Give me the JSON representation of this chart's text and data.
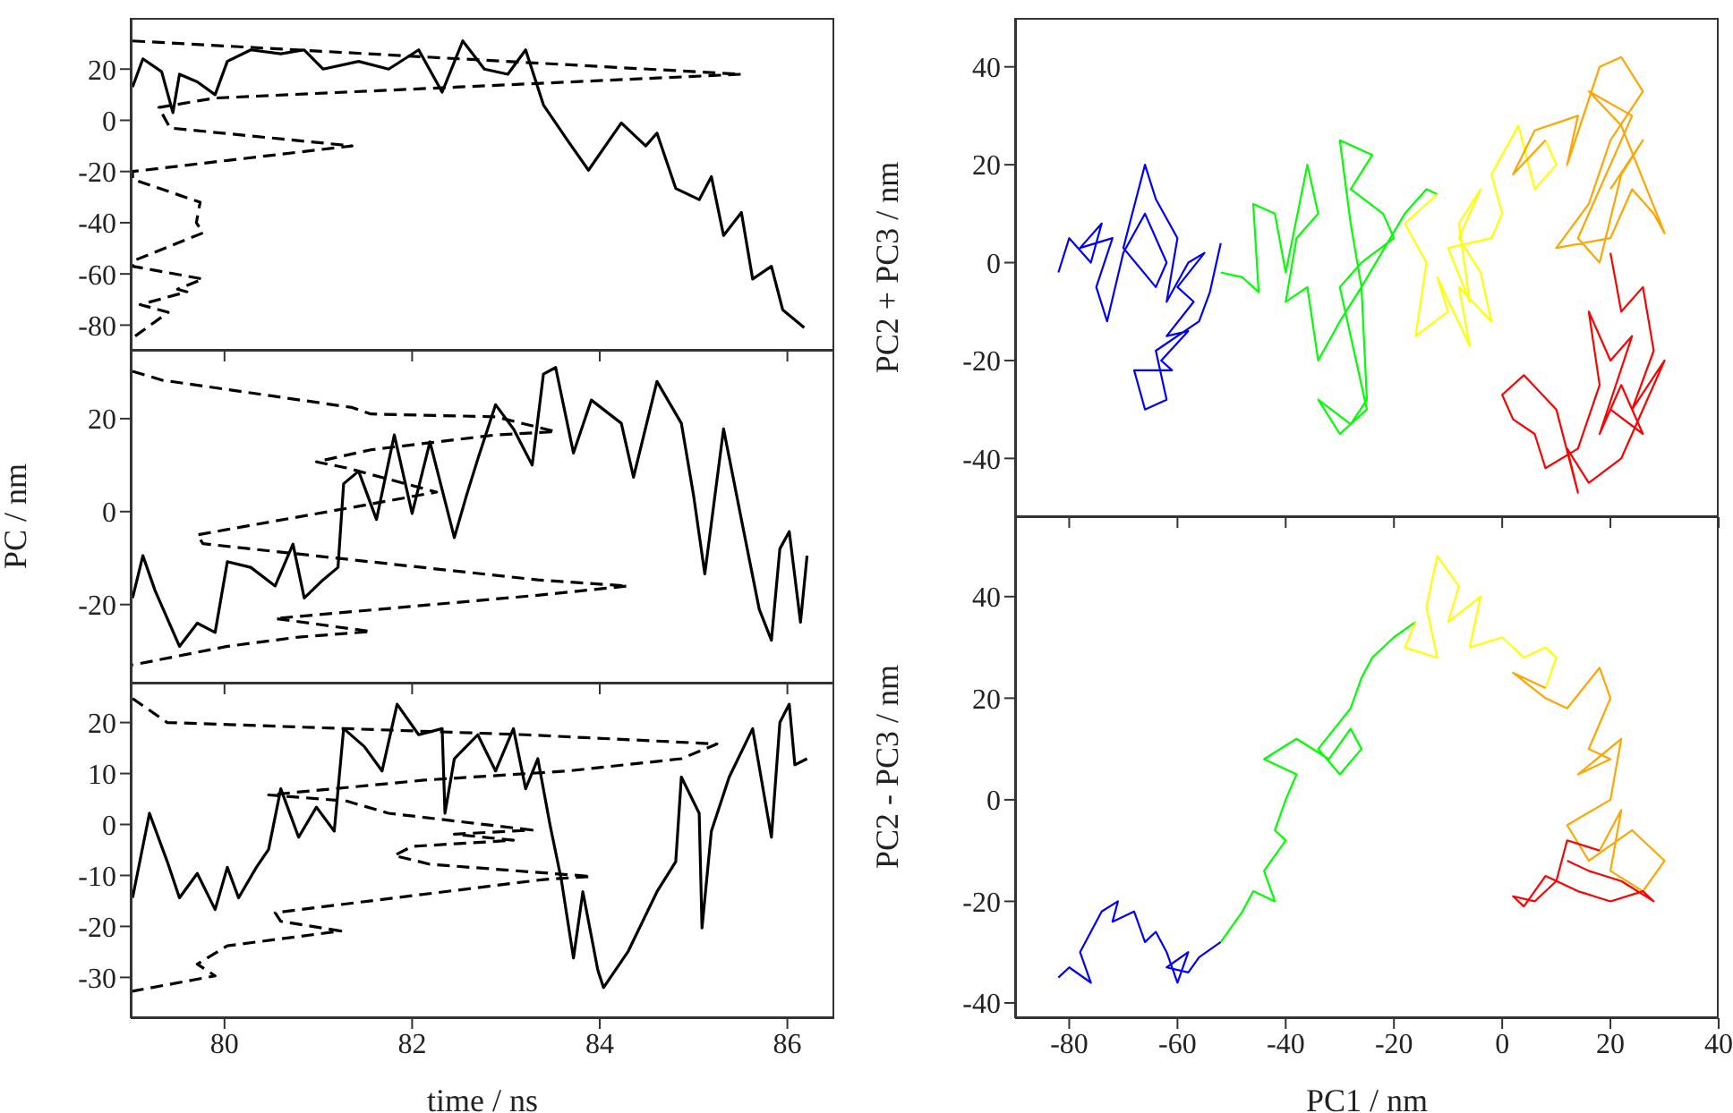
{
  "chart_data": [
    {
      "type": "line",
      "xlim": [
        79,
        86.5
      ],
      "ylim": [
        -90,
        40
      ],
      "xticks": [
        80,
        82,
        84,
        86
      ],
      "yticks": [
        -80,
        -60,
        -40,
        -20,
        0,
        20
      ],
      "tick_labels": "y",
      "series": [
        {
          "type": "line",
          "color": "#000000",
          "x": [
            79.02,
            79.13,
            79.33,
            79.45,
            79.52,
            79.71,
            79.9,
            80.03,
            80.28,
            80.6,
            80.85,
            81.05,
            81.43,
            81.75,
            82.07,
            82.32,
            82.54,
            82.77,
            83.02,
            83.21,
            83.4,
            83.66,
            83.88,
            84.23,
            84.49,
            84.61,
            84.81,
            85.06,
            85.19,
            85.32,
            85.51,
            85.63,
            85.83,
            85.95,
            86.18
          ],
          "values": [
            13,
            24,
            19,
            3,
            18,
            15,
            10,
            23,
            27.5,
            26,
            27.5,
            20,
            23,
            20,
            27.5,
            11,
            31,
            20,
            18,
            27.5,
            6,
            -8,
            -19.5,
            -1,
            -10,
            -5,
            -26.6,
            -31,
            -22,
            -45,
            -36,
            -62,
            -57,
            -74,
            -81
          ]
        },
        {
          "type": "line",
          "line_style": "dashed",
          "color": "#000000",
          "x": [
            79.02,
            85.51,
            79.9,
            79.3,
            79.42,
            81.36,
            79.02,
            79.02,
            79.74,
            79.7,
            79.77,
            79.02,
            79.02,
            79.77,
            79.5,
            79.6,
            79.1,
            79.4,
            79.02
          ],
          "values": [
            31,
            18,
            8.7,
            5,
            -3,
            -10,
            -20,
            -23,
            -32,
            -40,
            -44,
            -55,
            -57,
            -62,
            -66,
            -67,
            -72,
            -75,
            -85
          ]
        }
      ]
    },
    {
      "type": "line",
      "xlim": [
        79,
        86.5
      ],
      "ylim": [
        -37,
        35
      ],
      "xticks": [
        80,
        82,
        84,
        86
      ],
      "yticks": [
        -20,
        0,
        20
      ],
      "tick_labels": "y",
      "ylabel": "PC / nm",
      "series": [
        {
          "type": "line",
          "color": "#000000",
          "x": [
            79.02,
            79.13,
            79.26,
            79.52,
            79.71,
            79.9,
            80.03,
            80.28,
            80.54,
            80.73,
            80.85,
            81.05,
            81.21,
            81.27,
            81.43,
            81.62,
            81.81,
            82.0,
            82.19,
            82.45,
            82.58,
            82.7,
            82.89,
            83.08,
            83.28,
            83.4,
            83.53,
            83.72,
            83.91,
            84.23,
            84.36,
            84.61,
            84.87,
            85.0,
            85.12,
            85.32,
            85.51,
            85.7,
            85.83,
            85.92,
            86.02,
            86.14,
            86.21
          ],
          "values": [
            -18.6,
            -9.5,
            -17,
            -29,
            -24,
            -26,
            -10.8,
            -12,
            -16,
            -7,
            -18.6,
            -14.7,
            -12,
            6,
            8.7,
            -1.7,
            16.5,
            -0.4,
            15,
            -5.6,
            3.5,
            11.3,
            23,
            17.8,
            10,
            29.6,
            31,
            12.6,
            24,
            19,
            7.4,
            28,
            19,
            3.5,
            -13.4,
            17.8,
            -1.7,
            -21,
            -27.7,
            -8,
            -4.3,
            -23.8,
            -9.5
          ]
        },
        {
          "type": "line",
          "line_style": "dashed",
          "color": "#000000",
          "x": [
            79.02,
            79.33,
            81.36,
            81.56,
            82.89,
            83.53,
            82.89,
            81.56,
            80.98,
            81.3,
            82.26,
            81.36,
            79.71,
            79.77,
            83.34,
            84.3,
            83.34,
            80.54,
            81.56,
            80.79,
            80.03,
            79.02
          ],
          "values": [
            30.2,
            28.3,
            22.4,
            21,
            20.4,
            17.2,
            16.5,
            13.3,
            10.7,
            9.4,
            4.2,
            0.9,
            -5,
            -6.9,
            -14.7,
            -16,
            -18,
            -23,
            -25.8,
            -27,
            -29,
            -33
          ]
        }
      ]
    },
    {
      "type": "line",
      "xlim": [
        79,
        86.5
      ],
      "ylim": [
        -38,
        28
      ],
      "xticks": [
        80,
        82,
        84,
        86
      ],
      "yticks": [
        -30,
        -20,
        -10,
        0,
        10,
        20
      ],
      "xlabel": "time / ns",
      "series": [
        {
          "type": "line",
          "color": "#000000",
          "x": [
            79.02,
            79.2,
            79.39,
            79.52,
            79.71,
            79.9,
            80.03,
            80.15,
            80.34,
            80.47,
            80.6,
            80.79,
            80.98,
            81.17,
            81.27,
            81.49,
            81.68,
            81.84,
            82.07,
            82.32,
            82.35,
            82.45,
            82.7,
            82.89,
            83.08,
            83.21,
            83.34,
            83.47,
            83.59,
            83.72,
            83.82,
            83.98,
            84.04,
            84.3,
            84.61,
            84.81,
            84.87,
            85.06,
            85.09,
            85.19,
            85.38,
            85.63,
            85.83,
            85.92,
            86.02,
            86.08,
            86.21
          ],
          "values": [
            -14.4,
            2.2,
            -7.3,
            -14.4,
            -9.6,
            -16.7,
            -8.4,
            -14.4,
            -8.4,
            -4.9,
            7,
            -2.5,
            3.4,
            -1.3,
            18.8,
            15.3,
            10.5,
            23.6,
            17.6,
            18.8,
            2.2,
            12.9,
            17.6,
            10.5,
            18.8,
            7,
            12.9,
            -0.1,
            -10.8,
            -26.2,
            -13.2,
            -28.6,
            -32,
            -25,
            -13.2,
            -7.3,
            9.3,
            2.2,
            -20.3,
            -1.3,
            9.3,
            18.8,
            -2.5,
            20,
            23.6,
            11.7,
            12.9
          ]
        },
        {
          "type": "line",
          "line_style": "dashed",
          "color": "#000000",
          "x": [
            79.02,
            79.39,
            81.3,
            83.21,
            85.25,
            84.87,
            83.66,
            82.13,
            80.47,
            81.3,
            81.75,
            83.28,
            82.45,
            83.08,
            82.0,
            81.81,
            82.19,
            83.91,
            83.4,
            80.54,
            80.6,
            81.24,
            80.03,
            79.71,
            79.9,
            79.02,
            79.02
          ],
          "values": [
            24.7,
            20,
            18.8,
            17.6,
            15.8,
            12.9,
            10.5,
            8.7,
            5.8,
            4.6,
            2.2,
            -1.1,
            -1.9,
            -3.1,
            -4.3,
            -6.1,
            -7.8,
            -10.2,
            -10.8,
            -17.3,
            -19,
            -20.9,
            -23.8,
            -27.4,
            -29.7,
            -32.7,
            -34
          ]
        }
      ]
    },
    {
      "type": "line",
      "xlim": [
        -90,
        40
      ],
      "ylim": [
        -52,
        50
      ],
      "xticks": [
        -80,
        -60,
        -40,
        -20,
        0,
        20,
        40
      ],
      "yticks": [
        -40,
        -20,
        0,
        20,
        40
      ],
      "tick_labels": "y",
      "ylabel": "PC2 + PC3 / nm",
      "series": [
        {
          "type": "line",
          "color": "#0000ff",
          "x": [
            -82,
            -80,
            -76,
            -74,
            -78,
            -72,
            -75,
            -73,
            -70,
            -66,
            -62,
            -64,
            -70,
            -66,
            -64,
            -60,
            -62,
            -58,
            -55,
            -60,
            -57,
            -62,
            -58,
            -63,
            -61,
            -68,
            -66,
            -62,
            -64,
            -56,
            -54,
            -52
          ],
          "values": [
            -2,
            5,
            0,
            8,
            3,
            5,
            -5,
            -12,
            2,
            10,
            0,
            -5,
            3,
            20,
            13,
            5,
            -8,
            0,
            2,
            -5,
            -8,
            -15,
            -14,
            -20,
            -22,
            -22,
            -30,
            -28,
            -18,
            -12,
            -6,
            4
          ]
        },
        {
          "type": "line",
          "color": "#00ff00",
          "x": [
            -52,
            -48,
            -45,
            -46,
            -42,
            -40,
            -36,
            -34,
            -38,
            -40,
            -36,
            -34,
            -30,
            -26,
            -28,
            -30,
            -24,
            -28,
            -22,
            -20,
            -26,
            -30,
            -25,
            -30,
            -34,
            -28,
            -25,
            -26,
            -18,
            -14,
            -12
          ],
          "values": [
            -2,
            -3,
            -6,
            12,
            10,
            -2,
            20,
            10,
            5,
            -8,
            -5,
            -20,
            -12,
            -5,
            8,
            25,
            22,
            15,
            10,
            5,
            0,
            -5,
            -30,
            -35,
            -28,
            -33,
            -28,
            -5,
            10,
            15,
            14
          ]
        },
        {
          "type": "line",
          "color": "#ffff00",
          "x": [
            -12,
            -18,
            -14,
            -16,
            -10,
            -12,
            -6,
            -8,
            -2,
            -4,
            -8,
            -4,
            -8,
            -6,
            -10,
            -2,
            0,
            -2,
            3,
            6,
            10,
            8
          ],
          "values": [
            14,
            8,
            0,
            -15,
            -10,
            -3,
            -17,
            -5,
            -12,
            -2,
            5,
            15,
            8,
            -8,
            3,
            5,
            10,
            18,
            28,
            15,
            20,
            25
          ]
        },
        {
          "type": "line",
          "color": "#ffa500",
          "x": [
            8,
            2,
            6,
            14,
            12,
            18,
            22,
            26,
            20,
            16,
            10,
            20,
            24,
            28,
            30,
            22,
            16,
            24,
            20,
            14,
            18,
            22,
            26,
            20
          ],
          "values": [
            25,
            18,
            27,
            30,
            20,
            40,
            42,
            35,
            25,
            12,
            3,
            5,
            15,
            10,
            6,
            28,
            35,
            30,
            20,
            5,
            0,
            18,
            25,
            15
          ]
        },
        {
          "type": "line",
          "color": "#ff0000",
          "x": [
            20,
            22,
            26,
            28,
            24,
            30,
            22,
            16,
            12,
            14,
            10,
            4,
            0,
            2,
            6,
            8,
            14,
            18,
            16,
            20,
            24,
            18,
            22,
            26,
            20
          ],
          "values": [
            2,
            -10,
            -5,
            -18,
            -30,
            -20,
            -40,
            -45,
            -38,
            -47,
            -30,
            -23,
            -27,
            -32,
            -35,
            -42,
            -38,
            -25,
            -10,
            -20,
            -15,
            -35,
            -25,
            -35,
            -30
          ]
        }
      ]
    },
    {
      "type": "line",
      "xlim": [
        -90,
        40
      ],
      "ylim": [
        -43,
        56
      ],
      "xticks": [
        -80,
        -60,
        -40,
        -20,
        0,
        20,
        40
      ],
      "yticks": [
        -40,
        -20,
        0,
        20,
        40
      ],
      "xlabel": "PC1 / nm",
      "ylabel": "PC2 - PC3 / nm",
      "series": [
        {
          "type": "line",
          "color": "#0000ff",
          "x": [
            -82,
            -80,
            -76,
            -78,
            -76,
            -74,
            -71,
            -72,
            -68,
            -66,
            -64,
            -62,
            -60,
            -58,
            -62,
            -58,
            -56,
            -52
          ],
          "values": [
            -35,
            -33,
            -36,
            -30,
            -26,
            -22,
            -20,
            -24,
            -22,
            -28,
            -26,
            -30,
            -36,
            -30,
            -33,
            -34,
            -31,
            -28
          ]
        },
        {
          "type": "line",
          "color": "#00ff00",
          "x": [
            -52,
            -50,
            -48,
            -46,
            -42,
            -44,
            -40,
            -42,
            -40,
            -38,
            -44,
            -38,
            -32,
            -28,
            -26,
            -30,
            -34,
            -28,
            -26,
            -24,
            -20,
            -16
          ],
          "values": [
            -28,
            -25,
            -22,
            -18,
            -20,
            -14,
            -8,
            -6,
            0,
            5,
            8,
            12,
            8,
            14,
            10,
            5,
            10,
            18,
            24,
            28,
            32,
            35
          ]
        },
        {
          "type": "line",
          "color": "#ffff00",
          "x": [
            -16,
            -18,
            -12,
            -14,
            -12,
            -8,
            -10,
            -4,
            -6,
            0,
            4,
            8,
            10,
            8
          ],
          "values": [
            35,
            30,
            28,
            38,
            48,
            42,
            35,
            40,
            30,
            32,
            28,
            30,
            28,
            22
          ]
        },
        {
          "type": "line",
          "color": "#ffa500",
          "x": [
            8,
            2,
            8,
            12,
            18,
            20,
            16,
            20,
            14,
            22,
            20,
            12,
            16,
            24,
            30,
            26,
            20,
            22,
            18
          ],
          "values": [
            22,
            25,
            20,
            18,
            26,
            20,
            10,
            8,
            5,
            12,
            0,
            -5,
            -12,
            -6,
            -12,
            -18,
            -14,
            -2,
            -10
          ]
        },
        {
          "type": "line",
          "color": "#ff0000",
          "x": [
            18,
            12,
            10,
            6,
            2,
            4,
            8,
            14,
            20,
            26,
            28,
            22,
            16,
            12
          ],
          "values": [
            -10,
            -8,
            -16,
            -20,
            -19,
            -21,
            -15,
            -18,
            -20,
            -18,
            -20,
            -16,
            -14,
            -12
          ]
        }
      ]
    }
  ]
}
